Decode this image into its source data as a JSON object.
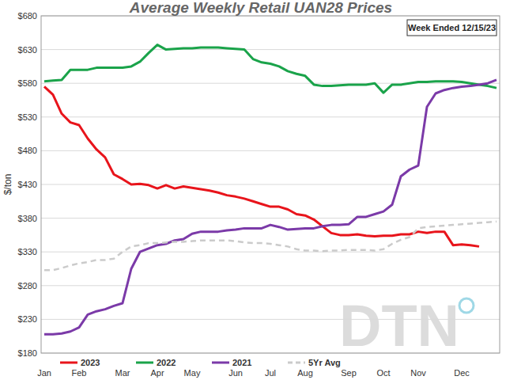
{
  "chart_data": {
    "type": "line",
    "title": "Average Weekly Retail UAN28 Prices",
    "y_label": "$/ton",
    "annotations": [
      "Week Ended 12/15/23",
      "DTN"
    ],
    "categories": [
      "Jan",
      null,
      null,
      null,
      "Feb",
      null,
      null,
      null,
      null,
      "Mar",
      null,
      null,
      null,
      "Apr",
      null,
      null,
      null,
      "May",
      null,
      null,
      null,
      null,
      "Jun",
      null,
      null,
      null,
      "Jul",
      null,
      null,
      null,
      "Aug",
      null,
      null,
      null,
      null,
      "Sep",
      null,
      null,
      null,
      "Oct",
      null,
      null,
      null,
      "Nov",
      null,
      null,
      null,
      null,
      "Dec",
      null,
      null,
      null,
      null
    ],
    "series": [
      {
        "name": "2023",
        "color": "#e8141b",
        "line_style": "solid",
        "values": [
          575,
          563,
          535,
          522,
          518,
          498,
          482,
          470,
          445,
          438,
          430,
          431,
          429,
          424,
          429,
          424,
          427,
          425,
          423,
          421,
          418,
          414,
          412,
          409,
          405,
          401,
          397,
          397,
          393,
          386,
          384,
          378,
          368,
          358,
          355,
          355,
          356,
          354,
          353,
          354,
          354,
          356,
          356,
          360,
          358,
          360,
          360,
          340,
          341,
          340,
          338,
          null,
          null
        ]
      },
      {
        "name": "2022",
        "color": "#1aa34a",
        "line_style": "solid",
        "values": [
          583,
          584,
          585,
          600,
          600,
          600,
          603,
          603,
          603,
          603,
          605,
          612,
          625,
          637,
          630,
          631,
          632,
          632,
          633,
          633,
          633,
          632,
          631,
          630,
          616,
          611,
          609,
          605,
          598,
          594,
          591,
          578,
          576,
          576,
          577,
          578,
          578,
          578,
          580,
          566,
          578,
          578,
          580,
          582,
          582,
          583,
          583,
          583,
          582,
          580,
          578,
          576,
          573
        ]
      },
      {
        "name": "2021",
        "color": "#7b3aa8",
        "line_style": "solid",
        "values": [
          208,
          208,
          209,
          212,
          218,
          237,
          242,
          245,
          250,
          254,
          305,
          330,
          335,
          340,
          342,
          347,
          349,
          357,
          360,
          360,
          360,
          362,
          363,
          365,
          365,
          365,
          370,
          367,
          363,
          364,
          365,
          365,
          368,
          370,
          370,
          371,
          382,
          382,
          386,
          390,
          400,
          442,
          452,
          458,
          545,
          565,
          570,
          573,
          575,
          576,
          578,
          580,
          585
        ]
      },
      {
        "name": "5Yr Avg",
        "color": "#cbcbcb",
        "line_style": "dashed",
        "values": [
          303,
          303,
          306,
          310,
          313,
          315,
          318,
          318,
          320,
          330,
          338,
          340,
          343,
          343,
          344,
          345,
          345,
          346,
          347,
          347,
          347,
          347,
          346,
          344,
          343,
          343,
          342,
          340,
          338,
          334,
          332,
          332,
          331,
          332,
          332,
          333,
          333,
          333,
          332,
          334,
          342,
          348,
          352,
          365,
          367,
          368,
          369,
          370,
          371,
          372,
          373,
          374,
          375
        ]
      }
    ],
    "ylim": [
      180,
      680
    ],
    "yticks": [
      {
        "value": 180,
        "label": "$180"
      },
      {
        "value": 230,
        "label": "$230"
      },
      {
        "value": 280,
        "label": "$280"
      },
      {
        "value": 330,
        "label": "$330"
      },
      {
        "value": 380,
        "label": "$380"
      },
      {
        "value": 430,
        "label": "$430"
      },
      {
        "value": 480,
        "label": "$480"
      },
      {
        "value": 530,
        "label": "$530"
      },
      {
        "value": 580,
        "label": "$580"
      },
      {
        "value": 630,
        "label": "$630"
      },
      {
        "value": 680,
        "label": "$680"
      }
    ],
    "grid": true,
    "legend": "bottom"
  }
}
